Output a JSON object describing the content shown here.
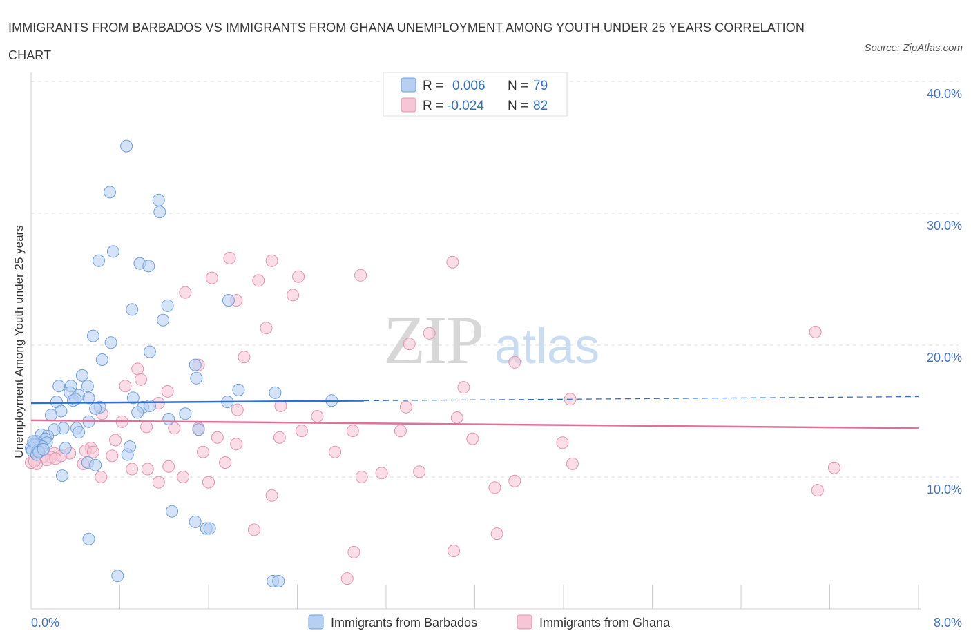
{
  "title": "IMMIGRANTS FROM BARBADOS VS IMMIGRANTS FROM GHANA UNEMPLOYMENT AMONG YOUTH UNDER 25 YEARS CORRELATION CHART",
  "source": "Source: ZipAtlas.com",
  "watermark": {
    "zip": "ZIP",
    "atlas": "atlas"
  },
  "legend": {
    "barbados": {
      "r_label": "R =",
      "r_value": "0.006",
      "n_label": "N =",
      "n_value": "79"
    },
    "ghana": {
      "r_label": "R =",
      "r_value": "-0.024",
      "n_label": "N =",
      "n_value": "82"
    }
  },
  "bottom_legend": {
    "barbados": "Immigrants from Barbados",
    "ghana": "Immigrants from Ghana"
  },
  "colors": {
    "barbados_fill": "#b7d0f2",
    "barbados_stroke": "#6f9fdc",
    "barbados_line": "#2e6fd1",
    "ghana_fill": "#f7c6d6",
    "ghana_stroke": "#e493ad",
    "ghana_line": "#e0709a",
    "grid": "#dddddd",
    "tick": "#4472c4"
  },
  "chart_data": {
    "type": "scatter",
    "title": "IMMIGRANTS FROM BARBADOS VS IMMIGRANTS FROM GHANA UNEMPLOYMENT AMONG YOUTH UNDER 25 YEARS CORRELATION CHART",
    "xlabel": "",
    "ylabel": "Unemployment Among Youth under 25 years",
    "xlim": [
      0,
      8
    ],
    "ylim": [
      0,
      40
    ],
    "x_tick_labels": [
      "0.0%",
      "8.0%"
    ],
    "y_ticks": [
      10,
      20,
      30,
      40
    ],
    "y_tick_labels": [
      "10.0%",
      "20.0%",
      "30.0%",
      "40.0%"
    ],
    "grid": true,
    "series": [
      {
        "name": "Immigrants from Barbados",
        "trend": {
          "x0": 0.0,
          "y0": 15.6,
          "x_solid_end": 3.0,
          "x1": 8.0,
          "y1": 16.1
        },
        "points": [
          [
            0.86,
            35.1
          ],
          [
            0.71,
            31.6
          ],
          [
            1.15,
            31.0
          ],
          [
            1.16,
            30.1
          ],
          [
            0.74,
            27.1
          ],
          [
            0.61,
            26.4
          ],
          [
            0.98,
            26.2
          ],
          [
            1.06,
            26.0
          ],
          [
            1.78,
            23.4
          ],
          [
            1.23,
            23.0
          ],
          [
            0.91,
            22.7
          ],
          [
            1.19,
            21.9
          ],
          [
            0.56,
            20.7
          ],
          [
            0.72,
            20.2
          ],
          [
            1.07,
            19.5
          ],
          [
            0.64,
            18.9
          ],
          [
            1.48,
            18.5
          ],
          [
            0.46,
            17.7
          ],
          [
            1.49,
            17.5
          ],
          [
            0.25,
            16.9
          ],
          [
            0.36,
            16.9
          ],
          [
            0.51,
            16.9
          ],
          [
            1.87,
            16.6
          ],
          [
            2.2,
            16.4
          ],
          [
            0.35,
            16.4
          ],
          [
            0.43,
            16.2
          ],
          [
            0.92,
            16.0
          ],
          [
            0.52,
            16.0
          ],
          [
            0.38,
            15.8
          ],
          [
            0.4,
            15.9
          ],
          [
            0.23,
            15.7
          ],
          [
            1.77,
            15.7
          ],
          [
            2.71,
            15.8
          ],
          [
            1.01,
            15.3
          ],
          [
            1.07,
            15.4
          ],
          [
            0.62,
            15.3
          ],
          [
            0.58,
            15.2
          ],
          [
            0.27,
            15.0
          ],
          [
            0.96,
            14.9
          ],
          [
            1.39,
            14.8
          ],
          [
            0.18,
            14.7
          ],
          [
            1.24,
            14.4
          ],
          [
            0.52,
            14.2
          ],
          [
            0.29,
            13.7
          ],
          [
            0.41,
            13.7
          ],
          [
            0.21,
            13.6
          ],
          [
            0.43,
            13.4
          ],
          [
            1.51,
            13.6
          ],
          [
            0.09,
            13.2
          ],
          [
            0.15,
            13.1
          ],
          [
            0.13,
            12.9
          ],
          [
            0.05,
            12.7
          ],
          [
            0.14,
            12.6
          ],
          [
            0.04,
            12.5
          ],
          [
            0.08,
            12.4
          ],
          [
            0.1,
            12.3
          ],
          [
            0.02,
            12.5
          ],
          [
            0.03,
            12.4
          ],
          [
            0.0,
            12.2
          ],
          [
            0.01,
            12.0
          ],
          [
            0.06,
            12.0
          ],
          [
            0.31,
            12.2
          ],
          [
            0.89,
            12.3
          ],
          [
            0.05,
            11.7
          ],
          [
            0.87,
            11.7
          ],
          [
            0.51,
            11.1
          ],
          [
            0.58,
            10.9
          ],
          [
            0.28,
            10.1
          ],
          [
            1.27,
            7.4
          ],
          [
            1.48,
            6.6
          ],
          [
            1.58,
            6.1
          ],
          [
            1.61,
            6.1
          ],
          [
            0.52,
            5.3
          ],
          [
            0.78,
            2.5
          ],
          [
            2.18,
            2.1
          ],
          [
            2.23,
            2.1
          ],
          [
            0.07,
            11.9
          ],
          [
            0.11,
            12.1
          ],
          [
            0.02,
            12.7
          ]
        ]
      },
      {
        "name": "Immigrants from Ghana",
        "trend": {
          "x0": 0.0,
          "y0": 14.3,
          "x1": 8.0,
          "y1": 13.7
        },
        "points": [
          [
            1.79,
            26.6
          ],
          [
            2.17,
            26.4
          ],
          [
            3.8,
            26.3
          ],
          [
            1.63,
            25.1
          ],
          [
            2.41,
            25.2
          ],
          [
            2.97,
            25.3
          ],
          [
            2.05,
            24.9
          ],
          [
            1.39,
            24.0
          ],
          [
            2.36,
            23.8
          ],
          [
            1.85,
            23.4
          ],
          [
            2.12,
            21.3
          ],
          [
            3.59,
            20.9
          ],
          [
            7.07,
            21.0
          ],
          [
            3.41,
            20.1
          ],
          [
            1.92,
            19.1
          ],
          [
            4.36,
            18.7
          ],
          [
            0.96,
            18.2
          ],
          [
            1.51,
            18.5
          ],
          [
            0.99,
            17.4
          ],
          [
            0.85,
            16.9
          ],
          [
            3.9,
            16.8
          ],
          [
            1.23,
            16.5
          ],
          [
            4.86,
            15.9
          ],
          [
            2.25,
            15.4
          ],
          [
            1.15,
            15.6
          ],
          [
            3.38,
            15.3
          ],
          [
            1.86,
            15.1
          ],
          [
            0.64,
            14.8
          ],
          [
            2.58,
            14.6
          ],
          [
            3.84,
            14.5
          ],
          [
            0.82,
            14.2
          ],
          [
            1.29,
            13.7
          ],
          [
            1.04,
            13.8
          ],
          [
            1.51,
            13.7
          ],
          [
            2.44,
            13.5
          ],
          [
            2.9,
            13.5
          ],
          [
            3.33,
            13.5
          ],
          [
            1.68,
            13.0
          ],
          [
            2.24,
            13.0
          ],
          [
            3.98,
            12.9
          ],
          [
            0.76,
            12.8
          ],
          [
            1.85,
            12.5
          ],
          [
            4.79,
            12.6
          ],
          [
            0.54,
            12.2
          ],
          [
            0.49,
            12.0
          ],
          [
            0.56,
            11.9
          ],
          [
            1.55,
            11.9
          ],
          [
            2.74,
            11.9
          ],
          [
            0.21,
            11.8
          ],
          [
            0.35,
            11.8
          ],
          [
            0.73,
            11.6
          ],
          [
            0.27,
            11.6
          ],
          [
            0.18,
            11.5
          ],
          [
            0.1,
            11.5
          ],
          [
            0.14,
            11.3
          ],
          [
            0.22,
            11.4
          ],
          [
            0.05,
            11.0
          ],
          [
            0.0,
            11.1
          ],
          [
            0.03,
            11.2
          ],
          [
            0.47,
            11.0
          ],
          [
            1.75,
            11.1
          ],
          [
            4.88,
            11.0
          ],
          [
            1.05,
            10.6
          ],
          [
            1.24,
            10.8
          ],
          [
            0.91,
            10.6
          ],
          [
            3.16,
            10.3
          ],
          [
            3.5,
            10.4
          ],
          [
            2.98,
            10.0
          ],
          [
            1.37,
            10.0
          ],
          [
            0.63,
            10.0
          ],
          [
            1.15,
            9.6
          ],
          [
            1.6,
            9.6
          ],
          [
            4.36,
            9.7
          ],
          [
            4.18,
            9.2
          ],
          [
            7.24,
            10.7
          ],
          [
            7.09,
            9.0
          ],
          [
            2.17,
            8.6
          ],
          [
            2.01,
            6.0
          ],
          [
            4.2,
            5.7
          ],
          [
            2.91,
            4.3
          ],
          [
            3.81,
            4.4
          ],
          [
            2.85,
            2.3
          ]
        ]
      }
    ]
  }
}
